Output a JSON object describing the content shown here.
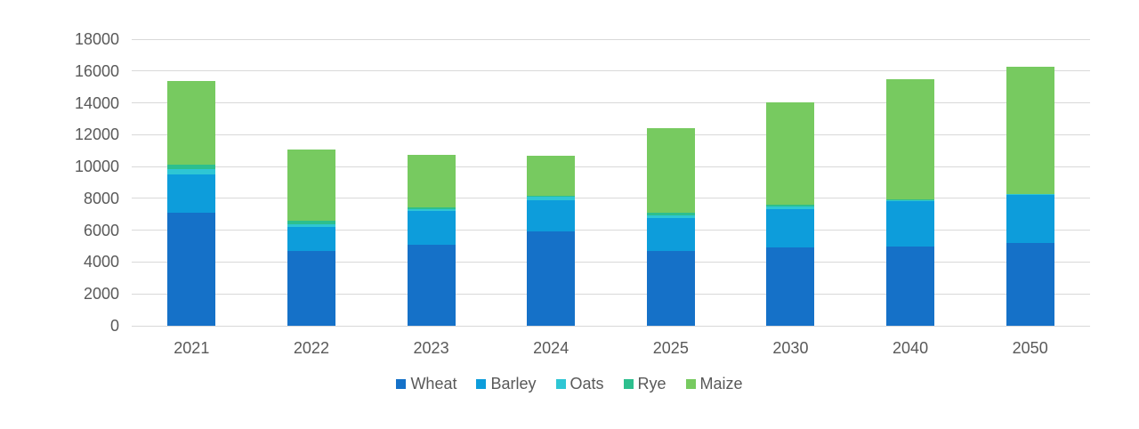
{
  "chart_data": {
    "type": "bar",
    "stacked": true,
    "title": "",
    "xlabel": "",
    "ylabel": "",
    "categories": [
      "2021",
      "2022",
      "2023",
      "2024",
      "2025",
      "2030",
      "2040",
      "2050"
    ],
    "series": [
      {
        "name": "Wheat",
        "color": "#1571c8",
        "values": [
          7100,
          4700,
          5100,
          5900,
          4700,
          4900,
          5000,
          5200
        ]
      },
      {
        "name": "Barley",
        "color": "#0d9ddb",
        "values": [
          2400,
          1500,
          2100,
          2000,
          2050,
          2450,
          2850,
          3000
        ]
      },
      {
        "name": "Oats",
        "color": "#2ec6d4",
        "values": [
          350,
          200,
          150,
          180,
          200,
          150,
          60,
          60
        ]
      },
      {
        "name": "Rye",
        "color": "#2dbf8e",
        "values": [
          250,
          200,
          80,
          100,
          150,
          130,
          40,
          40
        ]
      },
      {
        "name": "Maize",
        "color": "#77ca60",
        "values": [
          5250,
          4450,
          3300,
          2520,
          5300,
          6430,
          7550,
          7950
        ]
      }
    ],
    "totals": [
      15350,
      11050,
      10730,
      10700,
      12400,
      14060,
      15500,
      16250
    ],
    "ylim": [
      0,
      18000
    ],
    "yticks": [
      0,
      2000,
      4000,
      6000,
      8000,
      10000,
      12000,
      14000,
      16000,
      18000
    ],
    "grid": true,
    "legend_position": "bottom",
    "legend_labels": [
      "Wheat",
      "Barley",
      "Oats",
      "Rye",
      "Maize"
    ],
    "axis_text_color": "#595959",
    "gridline_color": "#d9d9d9",
    "background_color": "#ffffff"
  }
}
